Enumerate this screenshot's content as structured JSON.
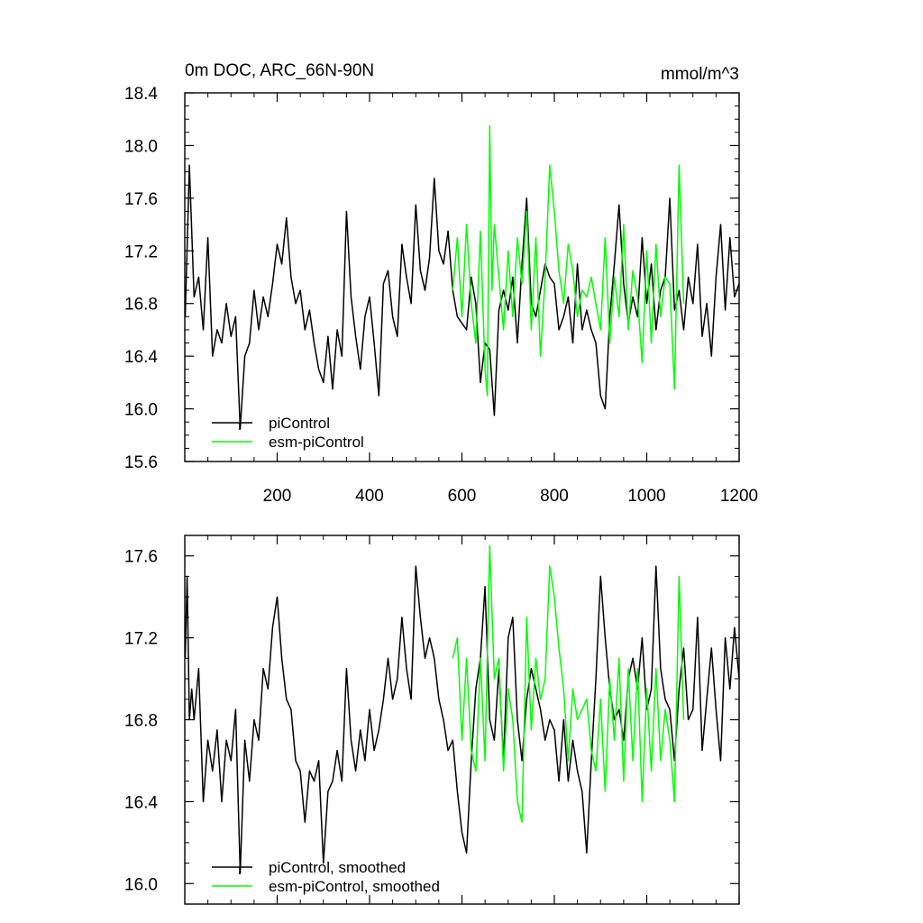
{
  "chart_data": [
    {
      "type": "line",
      "title": "0m DOC, ARC_66N-90N",
      "units": "mmol/m^3",
      "xlim": [
        0,
        1200
      ],
      "ylim": [
        15.6,
        18.4
      ],
      "xticks": [
        200,
        400,
        600,
        800,
        1000,
        1200
      ],
      "xtick_labels": [
        "200",
        "400",
        "600",
        "800",
        "1000",
        "1200"
      ],
      "yticks": [
        15.6,
        16.0,
        16.4,
        16.8,
        17.2,
        17.6,
        18.0,
        18.4
      ],
      "ytick_labels": [
        "15.6",
        "16.0",
        "16.4",
        "16.8",
        "17.2",
        "17.6",
        "18.0",
        "18.4"
      ],
      "legend_position": "bottom-left",
      "series": [
        {
          "name": "piControl",
          "color": "#000000",
          "x": [
            1,
            10,
            20,
            30,
            40,
            50,
            60,
            70,
            80,
            90,
            100,
            110,
            120,
            130,
            140,
            150,
            160,
            170,
            180,
            190,
            200,
            210,
            220,
            230,
            240,
            250,
            260,
            270,
            280,
            290,
            300,
            310,
            320,
            330,
            340,
            350,
            360,
            370,
            380,
            390,
            400,
            410,
            420,
            430,
            440,
            450,
            460,
            470,
            480,
            490,
            500,
            510,
            520,
            530,
            540,
            550,
            560,
            570,
            580,
            590,
            600,
            610,
            620,
            630,
            640,
            650,
            660,
            670,
            680,
            690,
            700,
            710,
            720,
            730,
            740,
            750,
            760,
            770,
            780,
            790,
            800,
            810,
            820,
            830,
            840,
            850,
            860,
            870,
            880,
            890,
            900,
            910,
            920,
            930,
            940,
            950,
            960,
            970,
            980,
            990,
            1000,
            1010,
            1020,
            1030,
            1040,
            1050,
            1060,
            1070,
            1080,
            1090,
            1100,
            1110,
            1120,
            1130,
            1140,
            1150,
            1160,
            1170,
            1180,
            1190,
            1200
          ],
          "values": [
            16.7,
            17.85,
            16.85,
            17.0,
            16.6,
            17.3,
            16.4,
            16.6,
            16.5,
            16.8,
            16.55,
            16.7,
            15.85,
            16.4,
            16.5,
            16.9,
            16.6,
            16.85,
            16.7,
            16.95,
            17.25,
            17.1,
            17.45,
            17.0,
            16.8,
            16.9,
            16.6,
            16.75,
            16.5,
            16.3,
            16.2,
            16.55,
            16.15,
            16.6,
            16.4,
            17.5,
            16.85,
            16.55,
            16.3,
            16.7,
            16.85,
            16.5,
            16.1,
            16.95,
            17.05,
            16.7,
            16.55,
            17.25,
            17.0,
            16.8,
            17.55,
            17.05,
            16.9,
            17.15,
            17.75,
            17.2,
            17.1,
            17.35,
            16.9,
            16.7,
            16.65,
            16.6,
            17.0,
            16.8,
            16.2,
            16.5,
            16.45,
            15.95,
            16.75,
            16.9,
            16.75,
            17.0,
            16.5,
            17.1,
            17.6,
            16.8,
            16.7,
            16.9,
            17.1,
            17.0,
            16.95,
            16.6,
            16.7,
            16.85,
            16.5,
            17.1,
            16.6,
            16.75,
            16.6,
            16.5,
            16.1,
            16.0,
            16.7,
            17.1,
            17.55,
            16.95,
            16.65,
            16.85,
            16.7,
            17.3,
            16.8,
            17.1,
            16.6,
            16.9,
            17.0,
            17.6,
            16.75,
            16.9,
            16.6,
            17.0,
            16.8,
            17.25,
            16.55,
            16.8,
            16.4,
            17.0,
            17.4,
            16.75,
            17.3,
            16.85,
            16.95
          ]
        },
        {
          "name": "esm-piControl",
          "color": "#00ff00",
          "x": [
            580,
            590,
            600,
            610,
            620,
            630,
            640,
            650,
            655,
            660,
            665,
            670,
            680,
            690,
            700,
            710,
            720,
            730,
            740,
            750,
            760,
            770,
            780,
            790,
            800,
            810,
            820,
            830,
            840,
            850,
            860,
            870,
            880,
            890,
            900,
            910,
            920,
            930,
            940,
            950,
            960,
            970,
            980,
            990,
            1000,
            1010,
            1020,
            1030,
            1040,
            1050,
            1060,
            1070,
            1080
          ],
          "values": [
            16.9,
            17.3,
            16.7,
            17.4,
            16.8,
            16.5,
            17.35,
            16.3,
            16.1,
            18.15,
            16.9,
            17.4,
            17.0,
            16.6,
            17.2,
            16.7,
            17.3,
            16.95,
            17.5,
            16.6,
            17.3,
            16.4,
            17.0,
            17.85,
            17.5,
            17.05,
            16.8,
            17.25,
            17.05,
            16.7,
            16.9,
            16.85,
            17.0,
            16.8,
            16.6,
            17.3,
            16.5,
            17.0,
            16.7,
            17.4,
            16.6,
            17.05,
            16.85,
            16.35,
            17.2,
            16.5,
            17.25,
            16.7,
            17.0,
            16.95,
            16.15,
            17.85,
            16.8
          ]
        }
      ]
    },
    {
      "type": "line",
      "xlim": [
        0,
        1200
      ],
      "ylim": [
        15.9,
        17.7
      ],
      "xticks": [
        200,
        400,
        600,
        800,
        1000,
        1200
      ],
      "yticks": [
        16.0,
        16.4,
        16.8,
        17.2,
        17.6
      ],
      "ytick_labels": [
        "16.0",
        "16.4",
        "16.8",
        "17.2",
        "17.6"
      ],
      "legend_position": "bottom-left",
      "series": [
        {
          "name": "piControl, smoothed",
          "color": "#000000",
          "x": [
            1,
            5,
            10,
            15,
            20,
            30,
            40,
            50,
            60,
            70,
            80,
            90,
            100,
            110,
            120,
            130,
            140,
            150,
            160,
            170,
            180,
            190,
            200,
            210,
            220,
            230,
            240,
            250,
            260,
            270,
            280,
            290,
            300,
            310,
            320,
            330,
            340,
            350,
            360,
            370,
            380,
            390,
            400,
            410,
            420,
            430,
            440,
            450,
            460,
            470,
            480,
            490,
            500,
            510,
            520,
            530,
            540,
            550,
            560,
            570,
            580,
            590,
            600,
            610,
            620,
            630,
            640,
            650,
            660,
            670,
            680,
            690,
            700,
            710,
            720,
            730,
            740,
            750,
            760,
            770,
            780,
            790,
            800,
            810,
            820,
            830,
            840,
            850,
            860,
            870,
            880,
            890,
            900,
            910,
            920,
            930,
            940,
            950,
            960,
            970,
            980,
            990,
            1000,
            1010,
            1020,
            1030,
            1040,
            1050,
            1060,
            1070,
            1080,
            1090,
            1100,
            1110,
            1120,
            1130,
            1140,
            1150,
            1160,
            1170,
            1180,
            1190,
            1200
          ],
          "values": [
            17.1,
            17.5,
            16.8,
            16.95,
            16.8,
            17.05,
            16.4,
            16.7,
            16.55,
            16.75,
            16.4,
            16.7,
            16.6,
            16.85,
            16.05,
            16.7,
            16.5,
            16.8,
            16.7,
            17.05,
            16.95,
            17.25,
            17.4,
            17.1,
            16.9,
            16.85,
            16.6,
            16.55,
            16.3,
            16.55,
            16.5,
            16.6,
            16.1,
            16.45,
            16.5,
            16.65,
            16.5,
            17.05,
            16.7,
            16.55,
            16.75,
            16.6,
            16.85,
            16.65,
            16.75,
            16.9,
            17.1,
            16.9,
            17.0,
            17.3,
            17.05,
            16.9,
            17.55,
            17.3,
            17.1,
            17.2,
            17.1,
            16.9,
            16.8,
            16.65,
            16.7,
            16.45,
            16.25,
            16.15,
            16.6,
            16.95,
            17.1,
            17.45,
            16.8,
            16.7,
            17.05,
            16.6,
            17.2,
            17.3,
            16.8,
            16.6,
            16.9,
            17.05,
            16.95,
            16.85,
            16.7,
            16.8,
            16.75,
            16.5,
            16.8,
            16.5,
            16.7,
            16.55,
            16.45,
            16.15,
            16.6,
            17.0,
            17.5,
            17.2,
            16.95,
            16.8,
            16.85,
            16.7,
            17.0,
            17.1,
            16.95,
            17.2,
            16.85,
            16.95,
            17.55,
            17.05,
            16.9,
            16.85,
            16.6,
            16.95,
            17.15,
            16.8,
            16.85,
            17.3,
            16.65,
            16.9,
            17.15,
            16.85,
            16.6,
            17.2,
            16.95,
            17.25,
            17.0
          ]
        },
        {
          "name": "esm-piControl, smoothed",
          "color": "#00ff00",
          "x": [
            580,
            590,
            600,
            610,
            620,
            630,
            640,
            650,
            660,
            670,
            680,
            690,
            700,
            710,
            720,
            730,
            740,
            750,
            760,
            770,
            780,
            790,
            800,
            810,
            820,
            830,
            840,
            850,
            860,
            870,
            880,
            890,
            900,
            910,
            920,
            930,
            940,
            950,
            960,
            970,
            980,
            990,
            1000,
            1010,
            1020,
            1030,
            1040,
            1050,
            1060,
            1070,
            1080
          ],
          "values": [
            17.1,
            17.2,
            16.7,
            17.1,
            16.65,
            16.55,
            17.1,
            16.6,
            17.65,
            17.0,
            17.1,
            16.55,
            16.95,
            16.8,
            16.4,
            16.3,
            17.3,
            16.75,
            17.1,
            16.9,
            17.0,
            17.55,
            17.4,
            17.15,
            16.95,
            16.6,
            16.95,
            16.8,
            16.85,
            16.9,
            16.65,
            16.55,
            16.9,
            16.45,
            17.0,
            16.7,
            17.1,
            16.5,
            17.05,
            16.6,
            17.05,
            16.4,
            16.95,
            16.55,
            17.05,
            16.6,
            16.85,
            16.7,
            16.4,
            17.5,
            16.8
          ]
        }
      ]
    }
  ]
}
